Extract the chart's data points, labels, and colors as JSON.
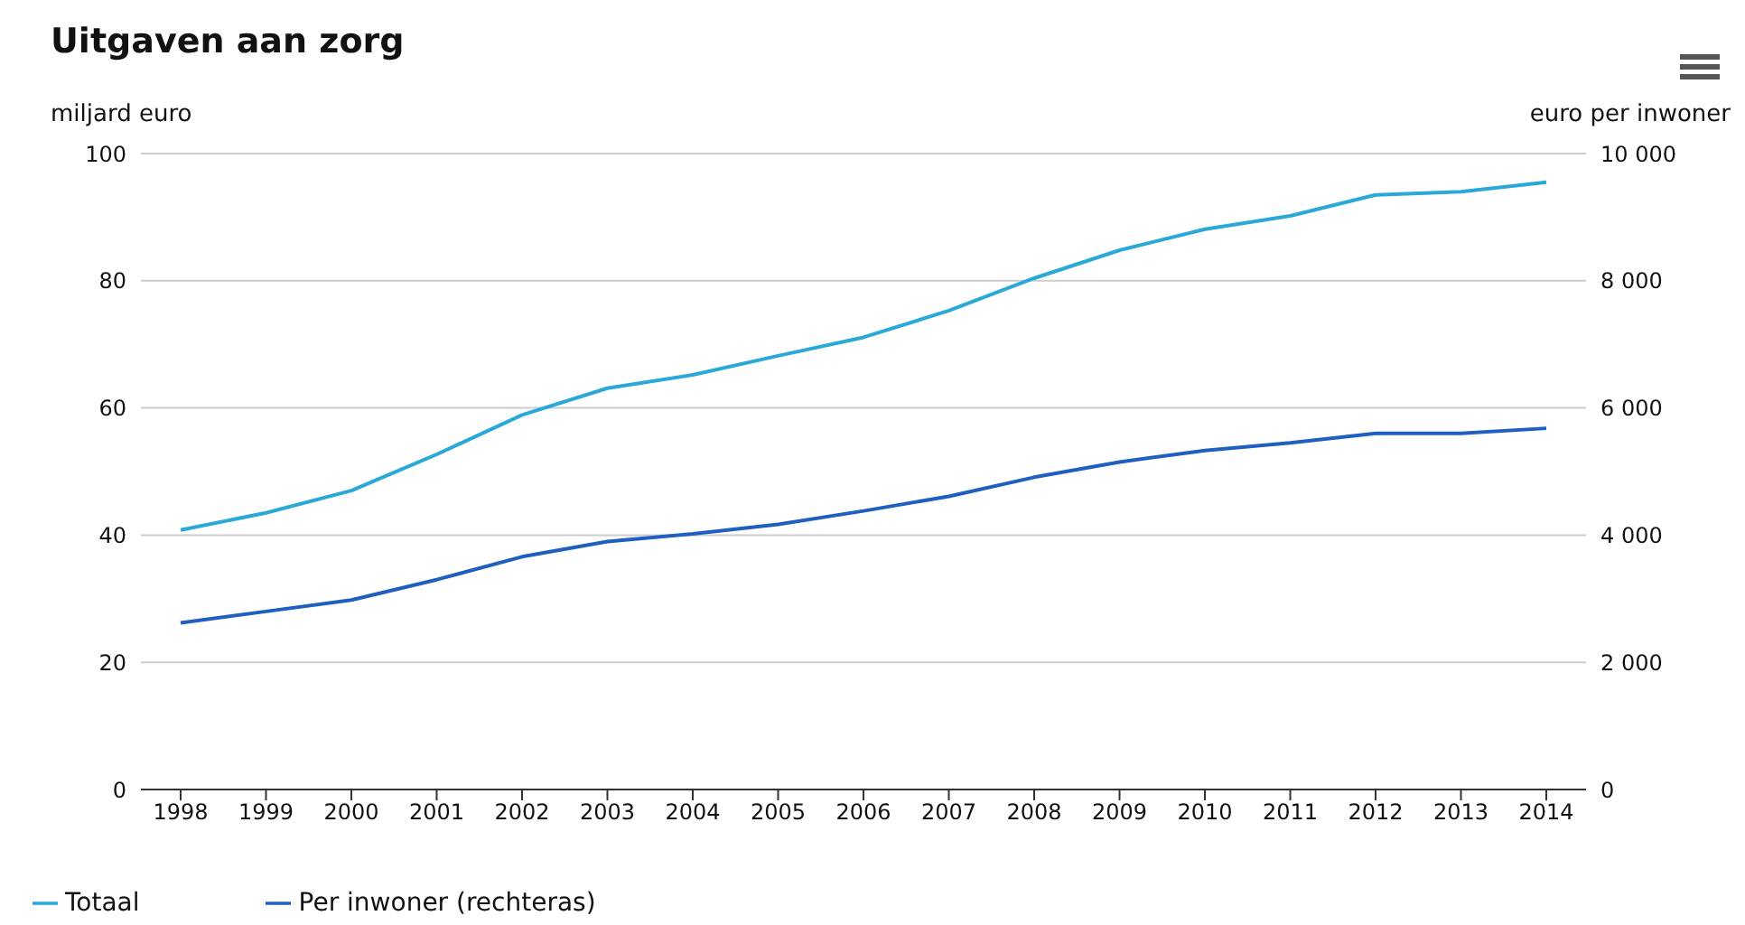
{
  "chart_data": {
    "type": "line",
    "title": "Uitgaven aan zorg",
    "ylabel": "miljard euro",
    "y2label": "euro per inwoner",
    "categories": [
      "1998",
      "1999",
      "2000",
      "2001",
      "2002",
      "2003",
      "2004",
      "2005",
      "2006",
      "2007",
      "2008",
      "2009",
      "2010",
      "2011",
      "2012",
      "2013",
      "2014"
    ],
    "series": [
      {
        "name": "Totaal",
        "color": "#2aa9d9",
        "values": [
          40.8,
          43.5,
          47,
          52.7,
          58.9,
          63.1,
          65.2,
          68.2,
          71.1,
          75.3,
          80.4,
          84.8,
          88.1,
          90.2,
          93.5,
          94,
          95.5
        ]
      },
      {
        "name": "Per inwoner (rechteras)",
        "color": "#1f5fbf",
        "axis": "y2",
        "values": [
          2620,
          2800,
          2980,
          3300,
          3660,
          3900,
          4020,
          4170,
          4380,
          4610,
          4910,
          5150,
          5330,
          5450,
          5600,
          5600,
          5680
        ]
      }
    ],
    "ylim": [
      0,
      100
    ],
    "yticks": [
      0,
      20,
      40,
      60,
      80,
      100
    ],
    "y2lim": [
      0,
      10000
    ],
    "y2ticks": [
      0,
      {
        "value": 2000,
        "label": "2 000"
      },
      {
        "value": 4000,
        "label": "4 000"
      },
      {
        "value": 6000,
        "label": "6 000"
      },
      {
        "value": 8000,
        "label": "8 000"
      },
      {
        "value": 10000,
        "label": "10 000"
      }
    ],
    "grid": "y",
    "legend": "bottom",
    "marker": "none",
    "line_style": "solid"
  }
}
